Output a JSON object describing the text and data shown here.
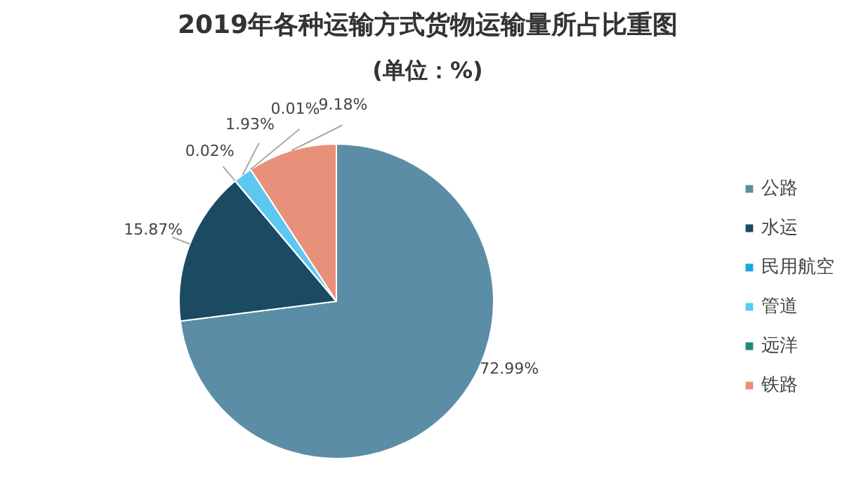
{
  "chart_data": {
    "type": "pie",
    "title": "2019年各种运输方式货物运输量所占比重图",
    "subtitle": "(单位：%)",
    "categories": [
      "公路",
      "水运",
      "民用航空",
      "管道",
      "远洋",
      "铁路"
    ],
    "values": [
      72.99,
      15.87,
      0.02,
      1.93,
      0.01,
      9.18
    ],
    "colors": [
      "#5b8ea6",
      "#1b4a63",
      "#1aa7dc",
      "#5cc8f0",
      "#23877c",
      "#e8907a"
    ],
    "value_labels": [
      "72.99%",
      "15.87%",
      "0.02%",
      "1.93%",
      "0.01%",
      "9.18%"
    ],
    "legend": "right"
  }
}
